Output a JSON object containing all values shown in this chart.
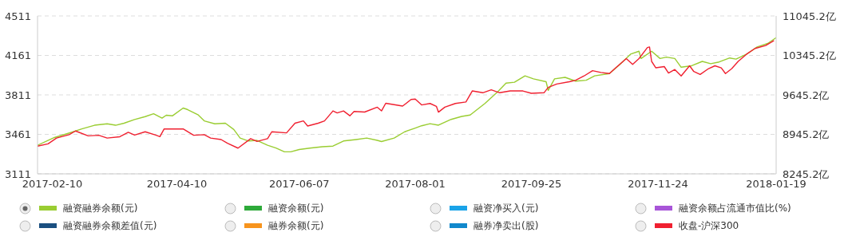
{
  "chart_data": {
    "type": "line",
    "legend": "bottom",
    "grid": "y",
    "marker": "none",
    "line_style": "solid",
    "xlim": [
      "2017-02-03",
      "2018-01-19"
    ],
    "xticks": [
      {
        "value": "2017-02-10",
        "label": "2017-02-10"
      },
      {
        "value": "2017-04-10",
        "label": "2017-04-10"
      },
      {
        "value": "2017-06-07",
        "label": "2017-06-07"
      },
      {
        "value": "2017-08-01",
        "label": "2017-08-01"
      },
      {
        "value": "2017-09-25",
        "label": "2017-09-25"
      },
      {
        "value": "2017-11-24",
        "label": "2017-11-24"
      },
      {
        "value": "2018-01-19",
        "label": "2018-01-19"
      }
    ],
    "ylim": [
      3111,
      4511
    ],
    "yticks": [
      3111,
      3461,
      3811,
      4161,
      4511
    ],
    "y2lim": [
      8245.2,
      11045.2
    ],
    "y2ticks": [
      {
        "value": 8245.2,
        "label": "8245.2亿"
      },
      {
        "value": 8945.2,
        "label": "8945.2亿"
      },
      {
        "value": 9645.2,
        "label": "9645.2亿"
      },
      {
        "value": 10345.2,
        "label": "10345.2亿"
      },
      {
        "value": 11045.2,
        "label": "11045.2亿"
      }
    ],
    "series": [
      {
        "name": "融资融券余额(元)",
        "color": "#9acd32",
        "axis": "y2",
        "x": [
          "2017-02-03",
          "2017-02-11",
          "2017-02-19",
          "2017-02-24",
          "2017-03-02",
          "2017-03-08",
          "2017-03-12",
          "2017-03-16",
          "2017-03-21",
          "2017-03-26",
          "2017-03-30",
          "2017-04-03",
          "2017-04-05",
          "2017-04-08",
          "2017-04-13",
          "2017-04-15",
          "2017-04-20",
          "2017-04-23",
          "2017-04-28",
          "2017-05-03",
          "2017-05-07",
          "2017-05-10",
          "2017-05-14",
          "2017-05-18",
          "2017-05-23",
          "2017-05-27",
          "2017-05-31",
          "2017-06-03",
          "2017-06-07",
          "2017-06-12",
          "2017-06-18",
          "2017-06-23",
          "2017-06-28",
          "2017-07-04",
          "2017-07-09",
          "2017-07-14",
          "2017-07-16",
          "2017-07-22",
          "2017-07-27",
          "2017-08-01",
          "2017-08-04",
          "2017-08-08",
          "2017-08-12",
          "2017-08-18",
          "2017-08-23",
          "2017-08-27",
          "2017-09-03",
          "2017-09-09",
          "2017-09-13",
          "2017-09-17",
          "2017-09-22",
          "2017-09-26",
          "2017-10-02",
          "2017-10-03",
          "2017-10-06",
          "2017-10-11",
          "2017-10-16",
          "2017-10-21",
          "2017-10-25",
          "2017-11-01",
          "2017-11-06",
          "2017-11-11",
          "2017-11-15",
          "2017-11-16",
          "2017-11-21",
          "2017-11-25",
          "2017-11-28",
          "2017-12-02",
          "2017-12-05",
          "2017-12-10",
          "2017-12-15",
          "2017-12-19",
          "2017-12-23",
          "2017-12-28",
          "2017-12-31",
          "2018-01-05",
          "2018-01-10",
          "2018-01-15",
          "2018-01-19"
        ],
        "values": [
          8752,
          8889,
          8981,
          9042,
          9107,
          9133,
          9107,
          9143,
          9209,
          9260,
          9310,
          9234,
          9285,
          9275,
          9412,
          9387,
          9295,
          9184,
          9133,
          9143,
          9031,
          8879,
          8828,
          8839,
          8752,
          8702,
          8636,
          8636,
          8676,
          8702,
          8727,
          8737,
          8828,
          8854,
          8879,
          8839,
          8818,
          8879,
          8991,
          9057,
          9098,
          9134,
          9108,
          9211,
          9263,
          9288,
          9494,
          9699,
          9853,
          9869,
          9982,
          9930,
          9879,
          9725,
          9930,
          9956,
          9889,
          9905,
          9982,
          10023,
          10187,
          10367,
          10419,
          10290,
          10419,
          10290,
          10316,
          10290,
          10136,
          10162,
          10239,
          10198,
          10229,
          10300,
          10280,
          10367,
          10496,
          10557,
          10660
        ]
      },
      {
        "name": "融资余额(元)",
        "color": "#2eaa3a"
      },
      {
        "name": "融资净买入(元)",
        "color": "#1aa3e8"
      },
      {
        "name": "融资余额占流通市值比(%)",
        "color": "#a855d8"
      },
      {
        "name": "融资融券余额差值(元)",
        "color": "#1a4f80"
      },
      {
        "name": "融券余额(元)",
        "color": "#f7941d"
      },
      {
        "name": "融券净卖出(股)",
        "color": "#1188cc"
      },
      {
        "name": "收盘-沪深300",
        "color": "#f02030",
        "x": [
          "2017-02-03",
          "2017-02-08",
          "2017-02-12",
          "2017-02-18",
          "2017-02-21",
          "2017-02-27",
          "2017-03-04",
          "2017-03-08",
          "2017-03-14",
          "2017-03-18",
          "2017-03-21",
          "2017-03-26",
          "2017-03-31",
          "2017-04-02",
          "2017-04-04",
          "2017-04-13",
          "2017-04-18",
          "2017-04-23",
          "2017-04-26",
          "2017-05-01",
          "2017-05-04",
          "2017-05-09",
          "2017-05-15",
          "2017-05-18",
          "2017-05-23",
          "2017-05-25",
          "2017-06-01",
          "2017-06-05",
          "2017-06-09",
          "2017-06-11",
          "2017-06-16",
          "2017-06-19",
          "2017-06-23",
          "2017-06-25",
          "2017-06-28",
          "2017-07-01",
          "2017-07-03",
          "2017-07-08",
          "2017-07-14",
          "2017-07-16",
          "2017-07-18",
          "2017-07-26",
          "2017-07-30",
          "2017-08-01",
          "2017-08-04",
          "2017-08-08",
          "2017-08-11",
          "2017-08-12",
          "2017-08-15",
          "2017-08-20",
          "2017-08-25",
          "2017-08-28",
          "2017-09-02",
          "2017-09-06",
          "2017-09-10",
          "2017-09-15",
          "2017-09-21",
          "2017-09-25",
          "2017-10-01",
          "2017-10-03",
          "2017-10-07",
          "2017-10-13",
          "2017-10-16",
          "2017-10-20",
          "2017-10-24",
          "2017-10-28",
          "2017-11-01",
          "2017-11-04",
          "2017-11-09",
          "2017-11-12",
          "2017-11-15",
          "2017-11-19",
          "2017-11-20",
          "2017-11-21",
          "2017-11-23",
          "2017-11-27",
          "2017-11-29",
          "2017-12-02",
          "2017-12-05",
          "2017-12-09",
          "2017-12-11",
          "2017-12-14",
          "2017-12-18",
          "2017-12-21",
          "2017-12-24",
          "2017-12-26",
          "2017-12-29",
          "2018-01-01",
          "2018-01-05",
          "2018-01-09",
          "2018-01-14",
          "2018-01-18"
        ],
        "values": [
          3357,
          3377,
          3428,
          3458,
          3491,
          3448,
          3453,
          3428,
          3440,
          3479,
          3455,
          3484,
          3455,
          3441,
          3509,
          3509,
          3453,
          3458,
          3428,
          3415,
          3382,
          3339,
          3423,
          3398,
          3423,
          3484,
          3474,
          3560,
          3580,
          3535,
          3560,
          3580,
          3669,
          3651,
          3669,
          3626,
          3664,
          3659,
          3702,
          3669,
          3737,
          3712,
          3770,
          3774,
          3722,
          3735,
          3710,
          3658,
          3702,
          3735,
          3748,
          3846,
          3830,
          3856,
          3830,
          3846,
          3846,
          3825,
          3830,
          3877,
          3907,
          3928,
          3941,
          3979,
          4026,
          4010,
          4000,
          4051,
          4133,
          4082,
          4133,
          4231,
          4236,
          4108,
          4051,
          4062,
          4005,
          4036,
          3979,
          4069,
          4018,
          3992,
          4044,
          4069,
          4051,
          4000,
          4044,
          4108,
          4172,
          4223,
          4249,
          4293
        ]
      }
    ]
  }
}
